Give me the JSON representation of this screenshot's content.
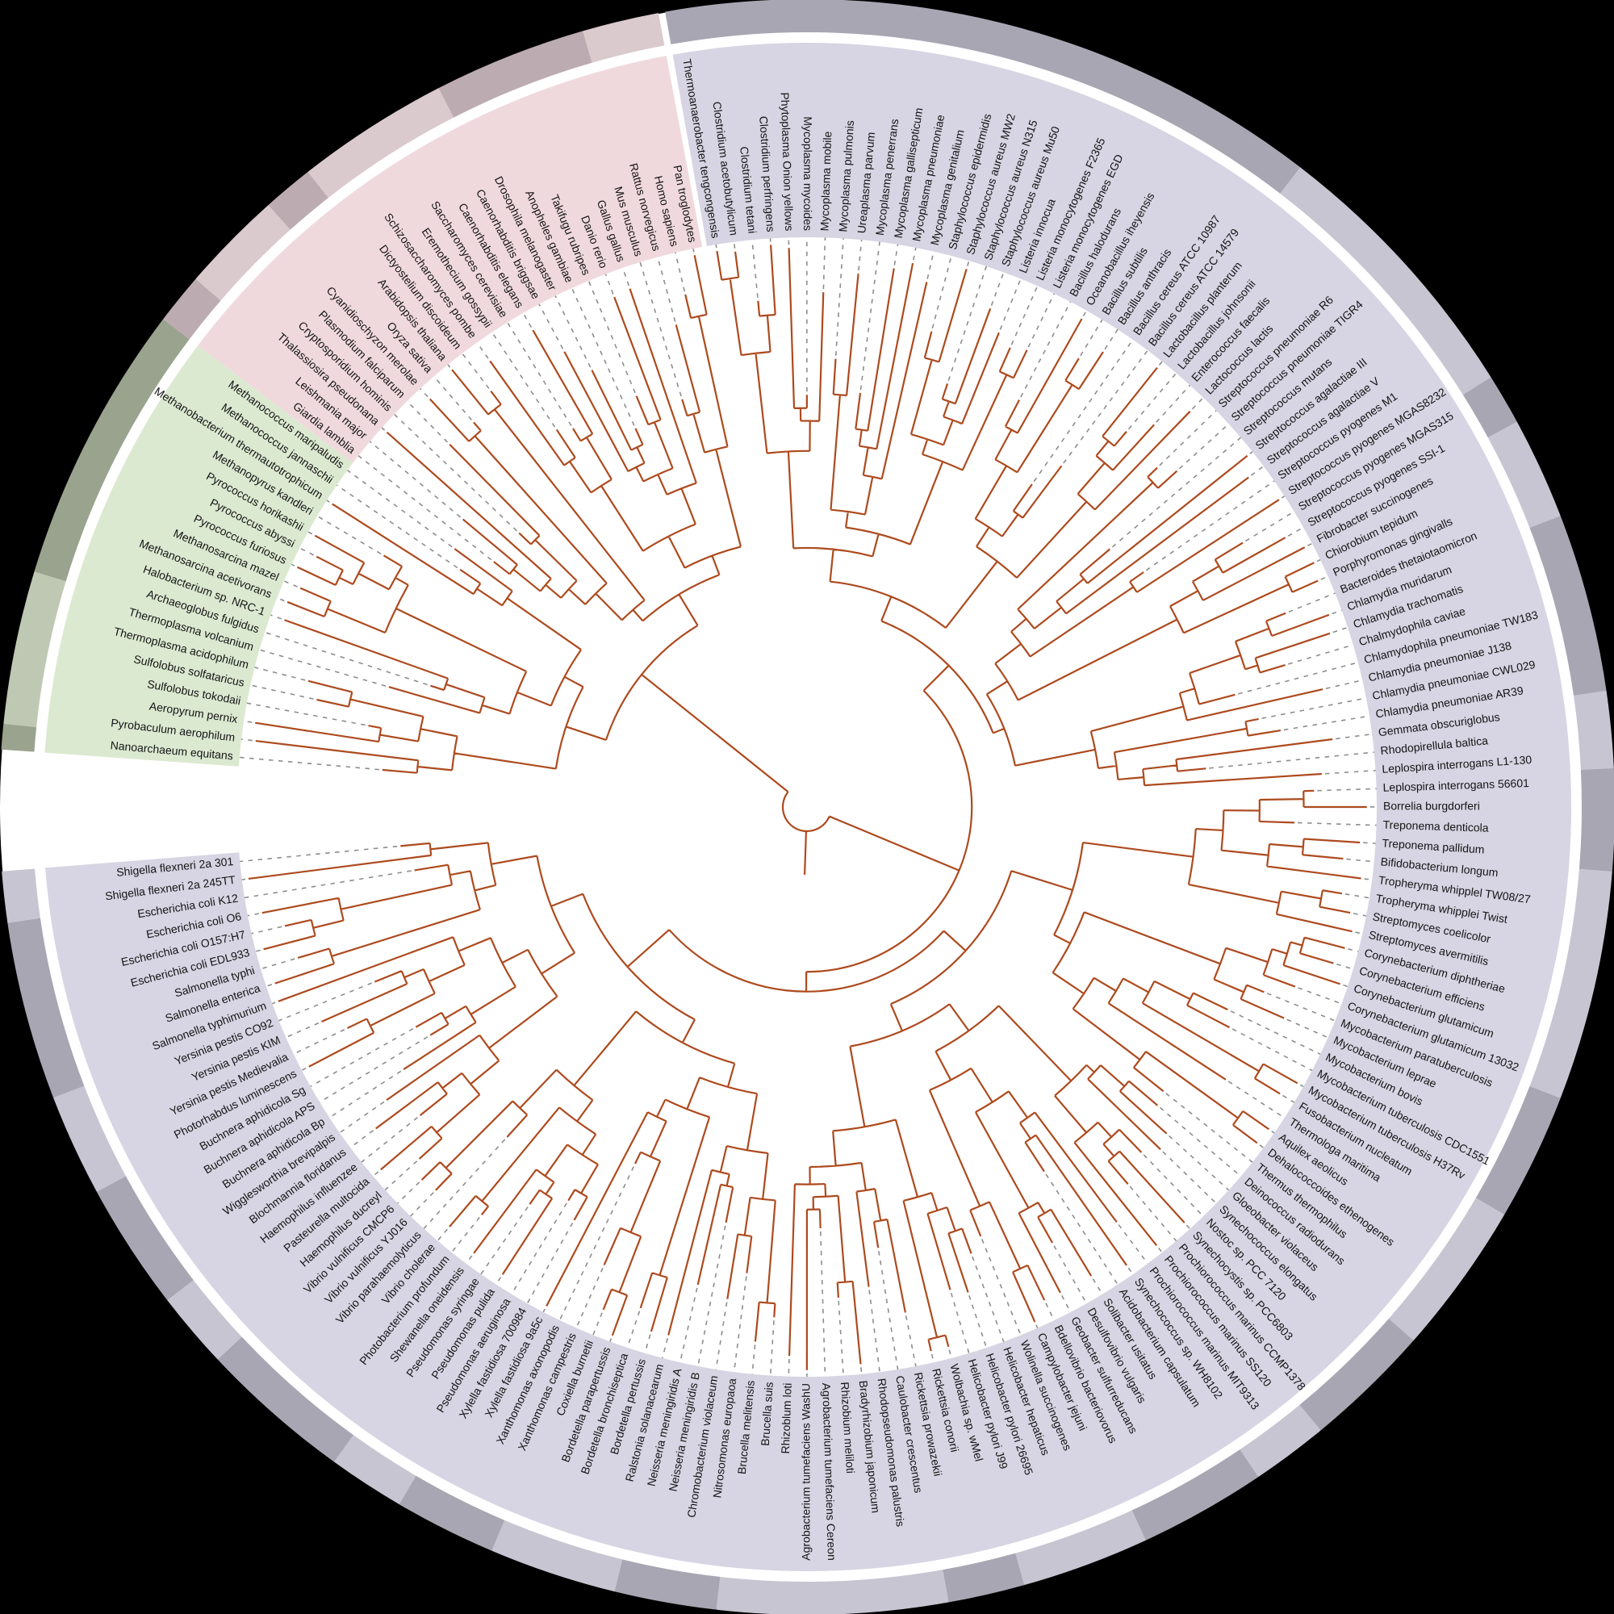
{
  "figure": {
    "kind": "circular-phylogenetic-tree",
    "background_color": "#000000",
    "inner_disc_color": "#ffffff",
    "branch_color": "#ad4a1e",
    "leader_line_color": "#8d8d8d",
    "label_color": "#141414",
    "leaf_count": 191
  },
  "groups": [
    {
      "id": "bacteria",
      "sector_color": "#d7d4e3",
      "ring_dark": "#a9a6b4",
      "ring_light": "#c7c5d2",
      "ring_segments": [
        [
          1,
          26,
          "d"
        ],
        [
          27,
          37,
          "l"
        ],
        [
          38,
          39,
          "d"
        ],
        [
          40,
          43,
          "l"
        ],
        [
          44,
          50,
          "d"
        ],
        [
          51,
          53,
          "l"
        ],
        [
          54,
          57,
          "d"
        ],
        [
          58,
          66,
          "l"
        ],
        [
          67,
          71,
          "d"
        ],
        [
          72,
          77,
          "l"
        ],
        [
          78,
          82,
          "d"
        ],
        [
          83,
          85,
          "l"
        ],
        [
          86,
          90,
          "d"
        ],
        [
          91,
          95,
          "l"
        ],
        [
          96,
          98,
          "d"
        ],
        [
          99,
          107,
          "l"
        ],
        [
          108,
          111,
          "d"
        ],
        [
          112,
          116,
          "l"
        ],
        [
          117,
          120,
          "d"
        ],
        [
          121,
          123,
          "l"
        ],
        [
          124,
          129,
          "d"
        ],
        [
          130,
          132,
          "l"
        ],
        [
          133,
          137,
          "d"
        ],
        [
          138,
          141,
          "l"
        ],
        [
          142,
          148,
          "d"
        ],
        [
          149,
          150,
          "l"
        ]
      ],
      "leaves": [
        "Thermoanaerobacter tengcongensis",
        "Clostridium acetobutylicum",
        "Clostridium tetani",
        "Clostridium perfringens",
        "Phytoplasma Onion yellows",
        "Mycoplasma mycoides",
        "Mycoplasma mobile",
        "Mycoplasma pulmonis",
        "Ureaplasma parvum",
        "Mycoplasma penerrans",
        "Mycoplasma gallisepticum",
        "Mycoplasma pneumoniae",
        "Mycoplasma genitalium",
        "Staphylococcus epidermidis",
        "Staphylococcus aureus MW2",
        "Staphylococcus aureus N315",
        "Staphylococcus aureus Mu50",
        "Listeria innocua",
        "Listeria monocytogenes F2365",
        "Listeria monocytogenes EGD",
        "Bacillus halodurans",
        "Oceanobacillus iheyensis",
        "Bacillus subtilis",
        "Bacillus anthracis",
        "Bacillus cereus ATCC 10987",
        "Bacillus cereus ATCC 14579",
        "Lactobacillus planterum",
        "Lactobacillus johnsonii",
        "Enterococcus faecalis",
        "Lactococcus lactis",
        "Streptococcus pneumoniae R6",
        "Streptococcus pneumoniae TIGR4",
        "Streptococcus mutans",
        "Streptococcus agalactiae III",
        "Streptococcus agalactiae V",
        "Streptococcus pyogenes M1",
        "Streptococcus pyogenes MGAS8232",
        "Streptococcus pyogenes MGAS315",
        "Streptococcus pyogenes SSI-1",
        "Fibrobacter succinogenes",
        "Chiorobium tepidum",
        "Porphyromonas gingivalls",
        "Bacteroides thetaiotaomicron",
        "Chlamydia muridarum",
        "Chlamydia trachomatis",
        "Chalmydophila caviae",
        "Chlamydophila pneumoniae TW183",
        "Chlamydia pneumoniae J138",
        "Chlamydia pneumoniae CWL029",
        "Chlamydia pneumoniae AR39",
        "Gemmata obscuriglobus",
        "Rhodopirellula baltica",
        "Leplospira interrogans L1-130",
        "Leplospira interrogans 56601",
        "Borrelia burgdorferi",
        "Treponema denticola",
        "Treponema pallidum",
        "Bifidobacterium longum",
        "Tropheryma whipplel TW08/27",
        "Tropheryma whipplei Twist",
        "Streptomyces coelicolor",
        "Streptomyces avermitilis",
        "Corynebacterium diphtheriae",
        "Corynebacterium efficiens",
        "Corynebacterium glutamicum",
        "Corynebacterium glutamicum 13032",
        "Mycobacterium paratuberculosis",
        "Mycobacterium leprae",
        "Mycobacterium bovis",
        "Mycobacterium tuberculosis CDC1551",
        "Mycobacterium tuberculosis H37Rv",
        "Fusobacterium nucleatum",
        "Thermologa maritima",
        "Aquilex aeolicus",
        "Dehalococcoides ethenogenes",
        "Thermus thermophilus",
        "Deinococcus radiodurans",
        "Gloeobacter violaceus",
        "Synechococcus elongatus",
        "Nostoc sp. PCC 7120",
        "Synechocystis sp. PCC6803",
        "Prochiorococcus marinus CCMP1378",
        "Prochiorococcus marinus SS120",
        "Prochiorococcus marinus MIT9313",
        "Synechococcus sp. WH8102",
        "Acidobacterium capsulatum",
        "Solibacter usitatus",
        "Desulfovibrio vulgaris",
        "Geobacter sulfurreducans",
        "Bdellovibrio bacteriovorus",
        "Campylobacter jejuni",
        "Wolinella succinogenes",
        "Helicobacter hepaticus",
        "Helicobacter pylori 26695",
        "Helicobacter pylori J99",
        "Wolbachia sp. wMel",
        "Rickettsia conorii",
        "Rickettsia prowazekii",
        "Caulobacter crescentus",
        "Rhodopseudomonas palustris",
        "Bradyrhizobium japonicum",
        "Rhizobium meliloti",
        "Agrobacterium tumefaciens Cereon",
        "Agrobacterium tumefaciens WashU",
        "Rhizoblum loti",
        "Brucella suis",
        "Brucella melitensis",
        "Nitrosomonas europaoa",
        "Chromobacterium violaceum",
        "Neisseria meningiridis B",
        "Neisseria meningiridis A",
        "Ralstonia solanacearum",
        "Bordetella pertussis",
        "Bordetella bronchiseptica",
        "Bordetella parapertussis",
        "Coxiella burnetii",
        "Xanthomonas campestris",
        "Xanthomonas axonopodis",
        "Xylella fastidiosa 9a5c",
        "Xylella fastidiosa 700984",
        "Pseudomonas aeruginosa",
        "Pseudomonas pulida",
        "Pseudomonas syringae",
        "Shewanella oneidensis",
        "Photobacterium profundum",
        "Vibrio cholerae",
        "Vibrio parahaemolyticus",
        "Vibrio vulnificus YJ016",
        "Vibrio vulnificus CMCP6",
        "Haemophilus ducreyl",
        "Pasteurella multocida",
        "Haemophilus influenzee",
        "Blochmannia floridanus",
        "Wigglesworthia brevipalpis",
        "Buchnera aphidicola Bp",
        "Buchnera aphidicola APS",
        "Buchnera aphidicola Sg",
        "Photorhabdus luminescens",
        "Yersinia pestis Medievalia",
        "Yersinia pestis KIM",
        "Yersinia pestis CO92",
        "Salmonella typhimurium",
        "Salmonella enterica",
        "Salmonella typhi",
        "Escherichia coli EDL933",
        "Escherichia coli O157:H7",
        "Escherichia coli O6",
        "Escherichia coli K12",
        "Shigella flexneri 2a 245TT",
        "Shigella flexneri 2a 301"
      ]
    },
    {
      "id": "archaea",
      "sector_color": "#dce9d1",
      "ring_dark": "#9aa38e",
      "ring_light": "#bfc8b3",
      "ring_segments": [
        [
          1,
          1,
          "d"
        ],
        [
          2,
          7,
          "l"
        ],
        [
          8,
          18,
          "d"
        ]
      ],
      "leaves": [
        "Nanoarchaeum equitans",
        "Pyrobaculum aerophilum",
        "Aeropyrum pernix",
        "Sulfolobus tokodaii",
        "Sulfolobus solfataricus",
        "Thermoplasma acidophilum",
        "Thermoplasma volcanium",
        "Archaeoglobus fulgidus",
        "Halobacterium sp. NRC-1",
        "Methanosarcina acetivorans",
        "Methanosarcina mazel",
        "Pyrococcus furiosus",
        "Pyrococcus abyssi",
        "Pyrococcus horikashii",
        "Methanopyrus kandleri",
        "Methanobacterium thermautotrophicum",
        "Methanococcus jannaschii",
        "Methanococcus maripaludis"
      ]
    },
    {
      "id": "eukaryota",
      "sector_color": "#f0d9dd",
      "ring_dark": "#bcabb0",
      "ring_light": "#dac9cd",
      "ring_segments": [
        [
          1,
          2,
          "d"
        ],
        [
          3,
          6,
          "l"
        ],
        [
          7,
          8,
          "d"
        ],
        [
          9,
          14,
          "l"
        ],
        [
          15,
          20,
          "d"
        ],
        [
          21,
          23,
          "l"
        ]
      ],
      "leaves": [
        "Giardia lamblia",
        "Leishmania major",
        "Thalassiosira pseudonana",
        "Cryptosporidium hominis",
        "Plasmodium falciparum",
        "Cyanidioschyzon merolae",
        "Oryza sativa",
        "Arabidopsis thaliana",
        "Dictyostelium discoideum",
        "Schizosaccharomyces pombe",
        "Eremothecium gossypii",
        "Saccharomyces cerevisiae",
        "Caenorhabditis elegans",
        "Caenorhabditis briggsae",
        "Drosophila melanogaster",
        "Anopheles gambiae",
        "Takifugu rubripes",
        "Danio rerio",
        "Gallus gallus",
        "Mus musculus",
        "Rattus norvegicus",
        "Homo sapiens",
        "Pan troglodytes"
      ]
    }
  ]
}
